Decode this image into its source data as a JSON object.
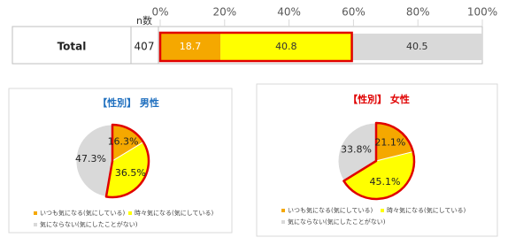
{
  "chart_data": [
    {
      "type": "bar",
      "orientation": "horizontal",
      "categories": [
        "Total"
      ],
      "n_label": "n数",
      "n": [
        407
      ],
      "xlim": [
        0,
        100
      ],
      "xticks": [
        {
          "value": 0,
          "label": "0%"
        },
        {
          "value": 20,
          "label": "20%"
        },
        {
          "value": 40,
          "label": "40%"
        },
        {
          "value": 60,
          "label": "60%"
        },
        {
          "value": 80,
          "label": "80%"
        },
        {
          "value": 100,
          "label": "100%"
        }
      ],
      "highlight": [
        0,
        1
      ],
      "series": [
        {
          "name": "いつも気になる(気にしている)",
          "color": "#f5a800",
          "values": [
            18.7
          ]
        },
        {
          "name": "時々気になる(気にしている)",
          "color": "#ffff00",
          "values": [
            40.8
          ]
        },
        {
          "name": "気にならない(気にしたことがない)",
          "color": "#d9d9d9",
          "values": [
            40.5
          ]
        }
      ]
    },
    {
      "type": "pie",
      "title": "【性別】 男性",
      "title_color": "#1f6fbf",
      "categories": [
        "いつも気になる(気にしている)",
        "時々気になる(気にしている)",
        "気にならない(気にしたことがない)"
      ],
      "colors": [
        "#f5a800",
        "#ffff00",
        "#d9d9d9"
      ],
      "highlight": [
        0,
        1
      ],
      "values": [
        16.3,
        36.5,
        47.3
      ],
      "value_labels": [
        "16.3%",
        "36.5%",
        "47.3%"
      ]
    },
    {
      "type": "pie",
      "title": "【性別】 女性",
      "title_color": "#e00000",
      "categories": [
        "いつも気になる(気にしている)",
        "時々気になる(気にしている)",
        "気にならない(気にしたことがない)"
      ],
      "colors": [
        "#f5a800",
        "#ffff00",
        "#d9d9d9"
      ],
      "highlight": [
        0,
        1
      ],
      "values": [
        21.1,
        45.1,
        33.8
      ],
      "value_labels": [
        "21.1%",
        "45.1%",
        "33.8%"
      ]
    }
  ]
}
